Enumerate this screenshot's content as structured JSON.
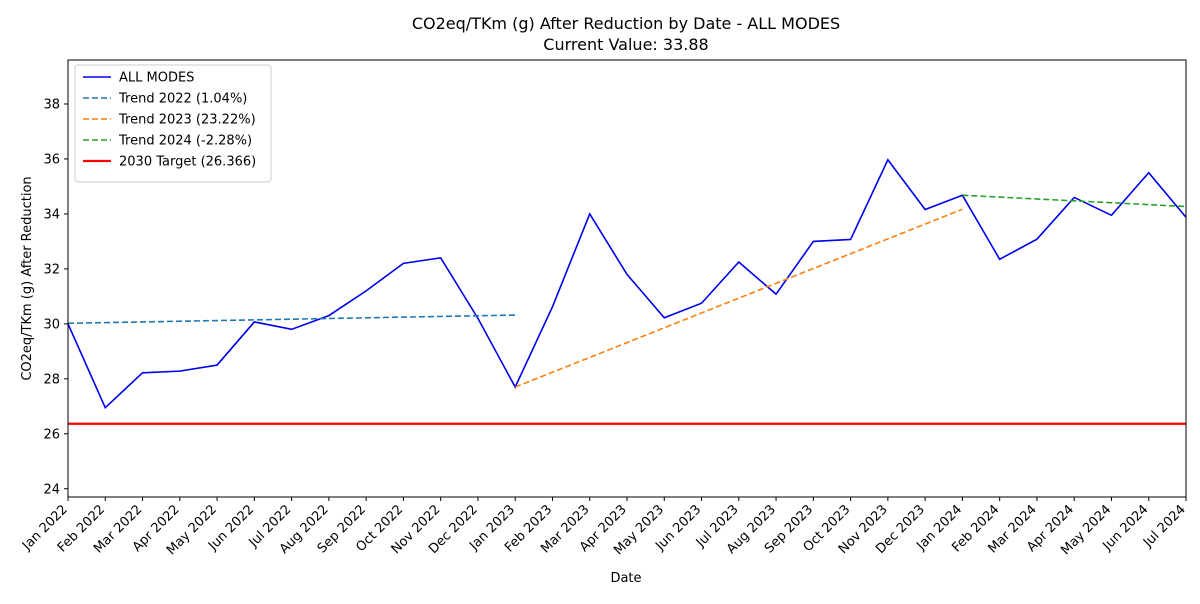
{
  "chart_data": {
    "type": "line",
    "title_line1": "CO2eq/TKm (g) After Reduction by Date - ALL MODES",
    "title_line2": "Current Value: 33.88",
    "xlabel": "Date",
    "ylabel": "CO2eq/TKm (g) After Reduction",
    "ylim": [
      23.7,
      39.6
    ],
    "yticks": [
      24,
      26,
      28,
      30,
      32,
      34,
      36,
      38
    ],
    "grid": false,
    "legend_position": "top-left",
    "x": [
      "Jan 2022",
      "Feb 2022",
      "Mar 2022",
      "Apr 2022",
      "May 2022",
      "Jun 2022",
      "Jul 2022",
      "Aug 2022",
      "Sep 2022",
      "Oct 2022",
      "Nov 2022",
      "Dec 2022",
      "Jan 2023",
      "Feb 2023",
      "Mar 2023",
      "Apr 2023",
      "May 2023",
      "Jun 2023",
      "Jul 2023",
      "Aug 2023",
      "Sep 2023",
      "Oct 2023",
      "Nov 2023",
      "Dec 2023",
      "Jan 2024",
      "Feb 2024",
      "Mar 2024",
      "Apr 2024",
      "May 2024",
      "Jun 2024",
      "Jul 2024"
    ],
    "series": [
      {
        "name": "ALL MODES",
        "color": "#0000ee",
        "style": "solid",
        "values": [
          30.0,
          26.95,
          28.22,
          28.28,
          28.5,
          30.07,
          29.8,
          30.3,
          31.2,
          32.2,
          32.4,
          30.2,
          27.7,
          30.62,
          34.0,
          31.8,
          30.22,
          30.75,
          32.25,
          31.08,
          33.0,
          33.07,
          35.97,
          34.16,
          34.68,
          32.35,
          33.08,
          34.6,
          33.95,
          35.5,
          33.88
        ]
      },
      {
        "name": "Trend 2022 (1.04%)",
        "color": "#1f77b4",
        "style": "dashed",
        "x": [
          "Jan 2022",
          "Jan 2023"
        ],
        "values": [
          30.02,
          30.32
        ]
      },
      {
        "name": "Trend 2023 (23.22%)",
        "color": "#ff7f0e",
        "style": "dashed",
        "x": [
          "Jan 2023",
          "Jan 2024"
        ],
        "values": [
          27.7,
          34.17
        ]
      },
      {
        "name": "Trend 2024 (-2.28%)",
        "color": "#2ca02c",
        "style": "dashed",
        "x": [
          "Jan 2024",
          "Jul 2024"
        ],
        "values": [
          34.68,
          34.27
        ]
      },
      {
        "name": "2030 Target (26.366)",
        "color": "#ff0000",
        "style": "solid-thick",
        "hline": 26.366
      }
    ]
  }
}
